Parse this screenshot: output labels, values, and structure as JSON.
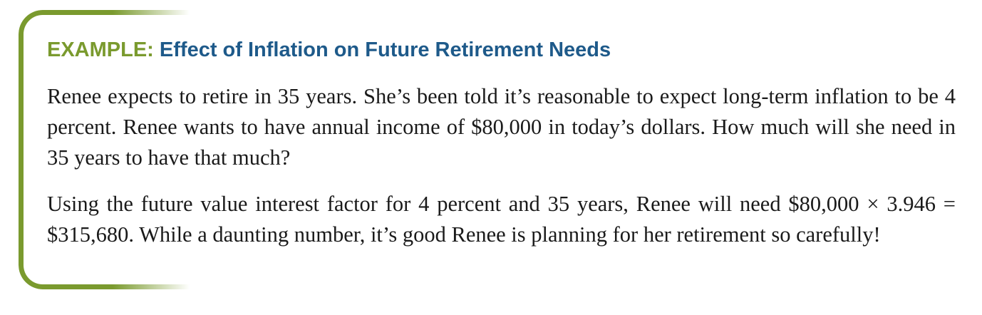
{
  "example": {
    "label": "EXAMPLE:",
    "title": "Effect of Inflation on Future Retirement Needs",
    "paragraphs": [
      "Renee expects to retire in 35 years. She’s been told it’s reasonable to expect long-term inflation to be 4 percent. Renee wants to have annual income of $80,000 in today’s dollars. How much will she need in 35 years to have that much?",
      "Using the future value interest factor for 4 percent and 35 years, Renee will need $80,000 × 3.946 = $315,680. While a daunting number, it’s good Renee is planning for her retirement so carefully!"
    ],
    "colors": {
      "accent_green": "#7a9a2e",
      "title_blue": "#1e5a8a",
      "body_text": "#1a1a1a"
    }
  }
}
